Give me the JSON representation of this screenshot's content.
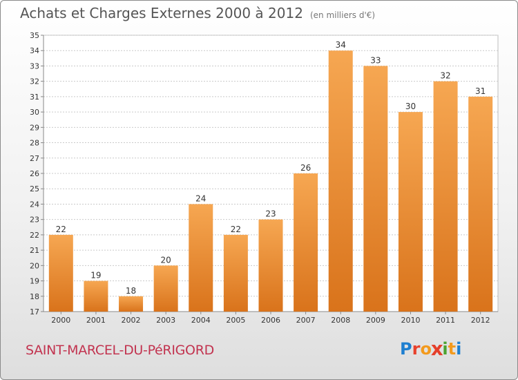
{
  "header": {
    "title": "Achats et Charges Externes 2000 à 2012",
    "subtitle": "(en milliers d'€)"
  },
  "footer": {
    "commune": "SAINT-MARCEL-DU-PéRIGORD",
    "logo_text": "Proxiti",
    "logo_letters": [
      "P",
      "r",
      "o",
      "x",
      "i",
      "t",
      "i"
    ]
  },
  "colors": {
    "bar_light": "#f6a752",
    "bar_dark": "#d9731b",
    "grid": "#c9c9c9",
    "text": "#333333",
    "commune": "#c2334f"
  },
  "chart_data": {
    "type": "bar",
    "title": "Achats et Charges Externes 2000 à 2012",
    "subtitle": "(en milliers d'€)",
    "xlabel": "",
    "ylabel": "",
    "categories": [
      "2000",
      "2001",
      "2002",
      "2003",
      "2004",
      "2005",
      "2006",
      "2007",
      "2008",
      "2009",
      "2010",
      "2011",
      "2012"
    ],
    "values": [
      22,
      19,
      18,
      20,
      24,
      22,
      23,
      26,
      34,
      33,
      30,
      32,
      31
    ],
    "ylim": [
      17,
      35
    ],
    "yticks": [
      17,
      18,
      19,
      20,
      21,
      22,
      23,
      24,
      25,
      26,
      27,
      28,
      29,
      30,
      31,
      32,
      33,
      34,
      35
    ],
    "grid": true,
    "legend": "none"
  }
}
